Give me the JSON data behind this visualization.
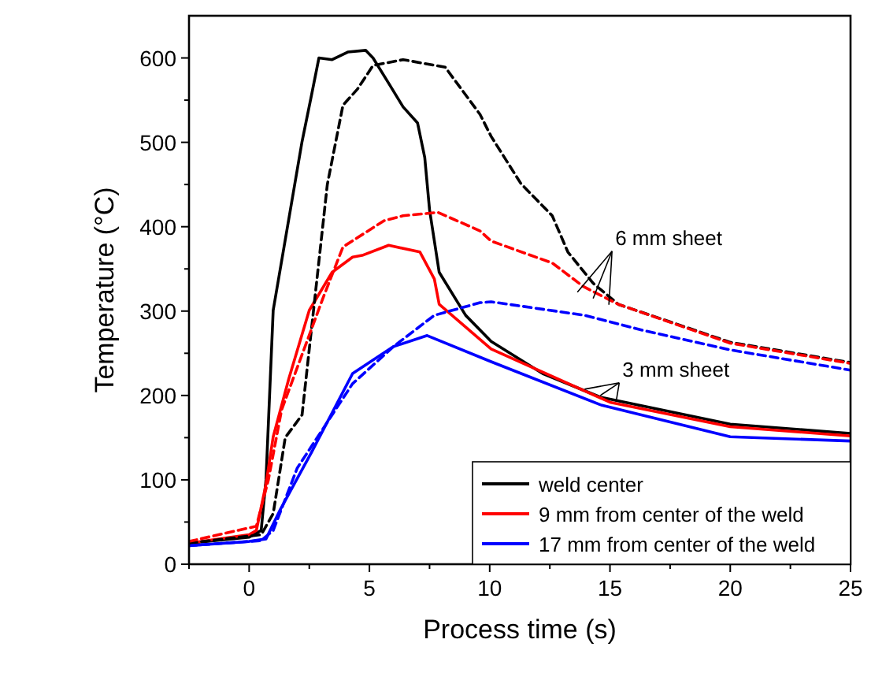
{
  "chart_data": {
    "type": "line",
    "xlabel": "Process time (s)",
    "ylabel": "Temperature (°C)",
    "xlim": [
      -2.5,
      25
    ],
    "ylim": [
      0,
      650
    ],
    "xticks": [
      {
        "value": -2.5,
        "label": null
      },
      0,
      {
        "value": 2.5,
        "label": null
      },
      5,
      {
        "value": 7.5,
        "label": null
      },
      10,
      {
        "value": 12.5,
        "label": null
      },
      15,
      {
        "value": 17.5,
        "label": null
      },
      20,
      {
        "value": 22.5,
        "label": null
      },
      25
    ],
    "yticks": [
      0,
      {
        "value": 50,
        "label": null
      },
      100,
      {
        "value": 150,
        "label": null
      },
      200,
      {
        "value": 250,
        "label": null
      },
      300,
      {
        "value": 350,
        "label": null
      },
      400,
      {
        "value": 450,
        "label": null
      },
      500,
      {
        "value": 550,
        "label": null
      },
      600
    ],
    "grid": false,
    "legend": "bottom right",
    "marker": "none",
    "series": [
      {
        "name": "weld center",
        "color": "#000000",
        "line_style": "solid",
        "x": [
          -2.5,
          0,
          0.5,
          0.7,
          1.0,
          2.2,
          2.6,
          2.9,
          3.45,
          4.1,
          4.85,
          5.15,
          5.8,
          6.4,
          7.0,
          7.3,
          7.5,
          7.9,
          9.0,
          10.06,
          12.2,
          14.6,
          20,
          25
        ],
        "values": [
          25,
          32,
          40,
          100,
          301,
          501,
          557,
          600,
          598,
          607,
          609,
          600,
          570,
          542,
          523,
          482,
          420,
          346,
          295,
          264,
          226,
          198,
          166,
          155
        ]
      },
      {
        "name": "9 mm from center of the weld",
        "color": "#ff0000",
        "line_style": "solid",
        "x": [
          -2.5,
          0,
          0.3,
          0.7,
          1.0,
          1.65,
          2.5,
          3.45,
          4.3,
          4.7,
          5.8,
          7.1,
          7.7,
          7.9,
          10.06,
          15,
          20,
          25
        ],
        "values": [
          25,
          35,
          40,
          95,
          151,
          220,
          301,
          346,
          364,
          366,
          378,
          370,
          338,
          308,
          255,
          192,
          163,
          152
        ]
      },
      {
        "name": "17 mm from center of the weld",
        "color": "#0000ff",
        "line_style": "solid",
        "x": [
          -2.5,
          0,
          0.7,
          1.3,
          2.6,
          4.3,
          6.0,
          7.4,
          10.06,
          14.6,
          20,
          25
        ],
        "values": [
          22,
          27,
          30,
          65,
          133,
          226,
          258,
          271,
          240,
          189,
          151,
          146
        ]
      },
      {
        "color": "#000000",
        "line_style": "dashed",
        "x": [
          -2.5,
          0.5,
          1.0,
          1.5,
          2.2,
          2.8,
          3.25,
          3.9,
          4.5,
          5.15,
          6.4,
          8.15,
          9.6,
          10.06,
          11.3,
          12.6,
          13.25,
          14.3,
          15.35,
          20,
          25
        ],
        "values": [
          25,
          35,
          60,
          150,
          177,
          333,
          450,
          544,
          563,
          591,
          598,
          589,
          533,
          507,
          451,
          413,
          370,
          333,
          308,
          263,
          239
        ]
      },
      {
        "color": "#ff0000",
        "line_style": "dashed",
        "x": [
          -2.5,
          0.3,
          0.8,
          1.35,
          3.05,
          3.9,
          5.6,
          6.4,
          7.85,
          9.6,
          10.06,
          12.6,
          13.9,
          15.35,
          20,
          25
        ],
        "values": [
          27,
          45,
          100,
          183,
          314,
          376,
          407,
          413,
          417,
          395,
          383,
          357,
          329,
          308,
          262,
          238
        ]
      },
      {
        "color": "#0000ff",
        "line_style": "dashed",
        "x": [
          -2.5,
          0.5,
          1.0,
          2.0,
          4.3,
          6.0,
          7.7,
          9.6,
          10.06,
          13.95,
          16.4,
          20,
          25
        ],
        "values": [
          22,
          28,
          40,
          114,
          214,
          258,
          295,
          310,
          311,
          295,
          277,
          254,
          230
        ]
      }
    ],
    "annotations": [
      {
        "text": "6 mm sheet",
        "x": 14.3,
        "y": 315
      },
      {
        "text": "3 mm sheet",
        "x": 14.6,
        "y": 200
      }
    ]
  }
}
